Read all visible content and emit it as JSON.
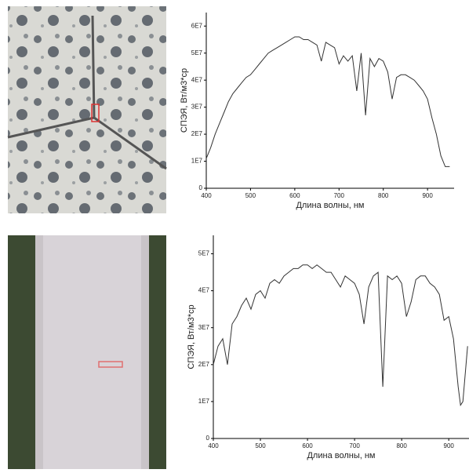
{
  "chart_data": [
    {
      "type": "line",
      "x_label": "Длина волны, нм",
      "y_label": "СПЭЯ, Вт/м3*ср",
      "color": "#333333",
      "xlim": [
        400,
        960
      ],
      "ylim": [
        0,
        65000000
      ],
      "xticks": [
        400,
        500,
        600,
        700,
        800,
        900
      ],
      "yticks": [
        0,
        {
          "value": 10000000,
          "label": "1E7"
        },
        {
          "value": 20000000,
          "label": "2E7"
        },
        {
          "value": 30000000,
          "label": "3E7"
        },
        {
          "value": 40000000,
          "label": "4E7"
        },
        {
          "value": 50000000,
          "label": "5E7"
        },
        {
          "value": 60000000,
          "label": "6E7"
        }
      ],
      "x": [
        400,
        410,
        420,
        430,
        440,
        450,
        460,
        470,
        480,
        490,
        500,
        510,
        520,
        530,
        540,
        550,
        560,
        570,
        580,
        590,
        600,
        610,
        620,
        630,
        640,
        650,
        660,
        670,
        680,
        690,
        700,
        710,
        720,
        730,
        740,
        750,
        760,
        770,
        780,
        790,
        800,
        810,
        820,
        830,
        840,
        850,
        860,
        870,
        880,
        890,
        900,
        910,
        920,
        930,
        940,
        950
      ],
      "values": [
        11000000,
        15000000,
        20000000,
        24000000,
        28000000,
        32000000,
        35000000,
        37000000,
        39000000,
        41000000,
        42000000,
        44000000,
        46000000,
        48000000,
        50000000,
        51000000,
        52000000,
        53000000,
        54000000,
        55000000,
        56000000,
        56000000,
        55000000,
        55000000,
        54000000,
        53000000,
        47000000,
        54000000,
        53000000,
        52000000,
        46000000,
        49000000,
        47000000,
        49000000,
        36000000,
        50000000,
        27000000,
        48000000,
        45000000,
        48000000,
        47000000,
        43000000,
        33000000,
        41000000,
        42000000,
        42000000,
        41000000,
        40000000,
        38000000,
        36000000,
        33000000,
        26000000,
        20000000,
        12000000,
        8000000,
        8000000
      ]
    },
    {
      "type": "line",
      "x_label": "Длина волны, нм",
      "y_label": "СПЭЯ, Вт/м3*ср",
      "color": "#333333",
      "xlim": [
        400,
        943
      ],
      "ylim": [
        0,
        55000000
      ],
      "xticks": [
        400,
        500,
        600,
        700,
        800,
        900
      ],
      "yticks": [
        0,
        {
          "value": 10000000,
          "label": "1E7"
        },
        {
          "value": 20000000,
          "label": "2E7"
        },
        {
          "value": 30000000,
          "label": "3E7"
        },
        {
          "value": 40000000,
          "label": "4E7"
        },
        {
          "value": 50000000,
          "label": "5E7"
        }
      ],
      "x": [
        400,
        410,
        420,
        430,
        440,
        450,
        460,
        470,
        480,
        490,
        500,
        510,
        520,
        530,
        540,
        550,
        560,
        570,
        580,
        590,
        600,
        610,
        620,
        630,
        640,
        650,
        660,
        670,
        680,
        690,
        700,
        710,
        720,
        730,
        740,
        750,
        760,
        770,
        780,
        790,
        800,
        810,
        820,
        830,
        840,
        850,
        860,
        870,
        880,
        890,
        900,
        910,
        920,
        925,
        930,
        940
      ],
      "values": [
        20000000,
        25000000,
        27000000,
        20000000,
        31000000,
        33000000,
        36000000,
        38000000,
        35000000,
        39000000,
        40000000,
        38000000,
        42000000,
        43000000,
        42000000,
        44000000,
        45000000,
        46000000,
        46000000,
        47000000,
        47000000,
        46000000,
        47000000,
        46000000,
        45000000,
        45000000,
        43000000,
        41000000,
        44000000,
        43000000,
        42000000,
        39000000,
        31000000,
        41000000,
        44000000,
        45000000,
        14000000,
        44000000,
        43000000,
        44000000,
        42000000,
        33000000,
        37000000,
        43000000,
        44000000,
        44000000,
        42000000,
        41000000,
        39000000,
        32000000,
        33000000,
        27000000,
        14000000,
        9000000,
        10000000,
        25000000
      ]
    }
  ]
}
